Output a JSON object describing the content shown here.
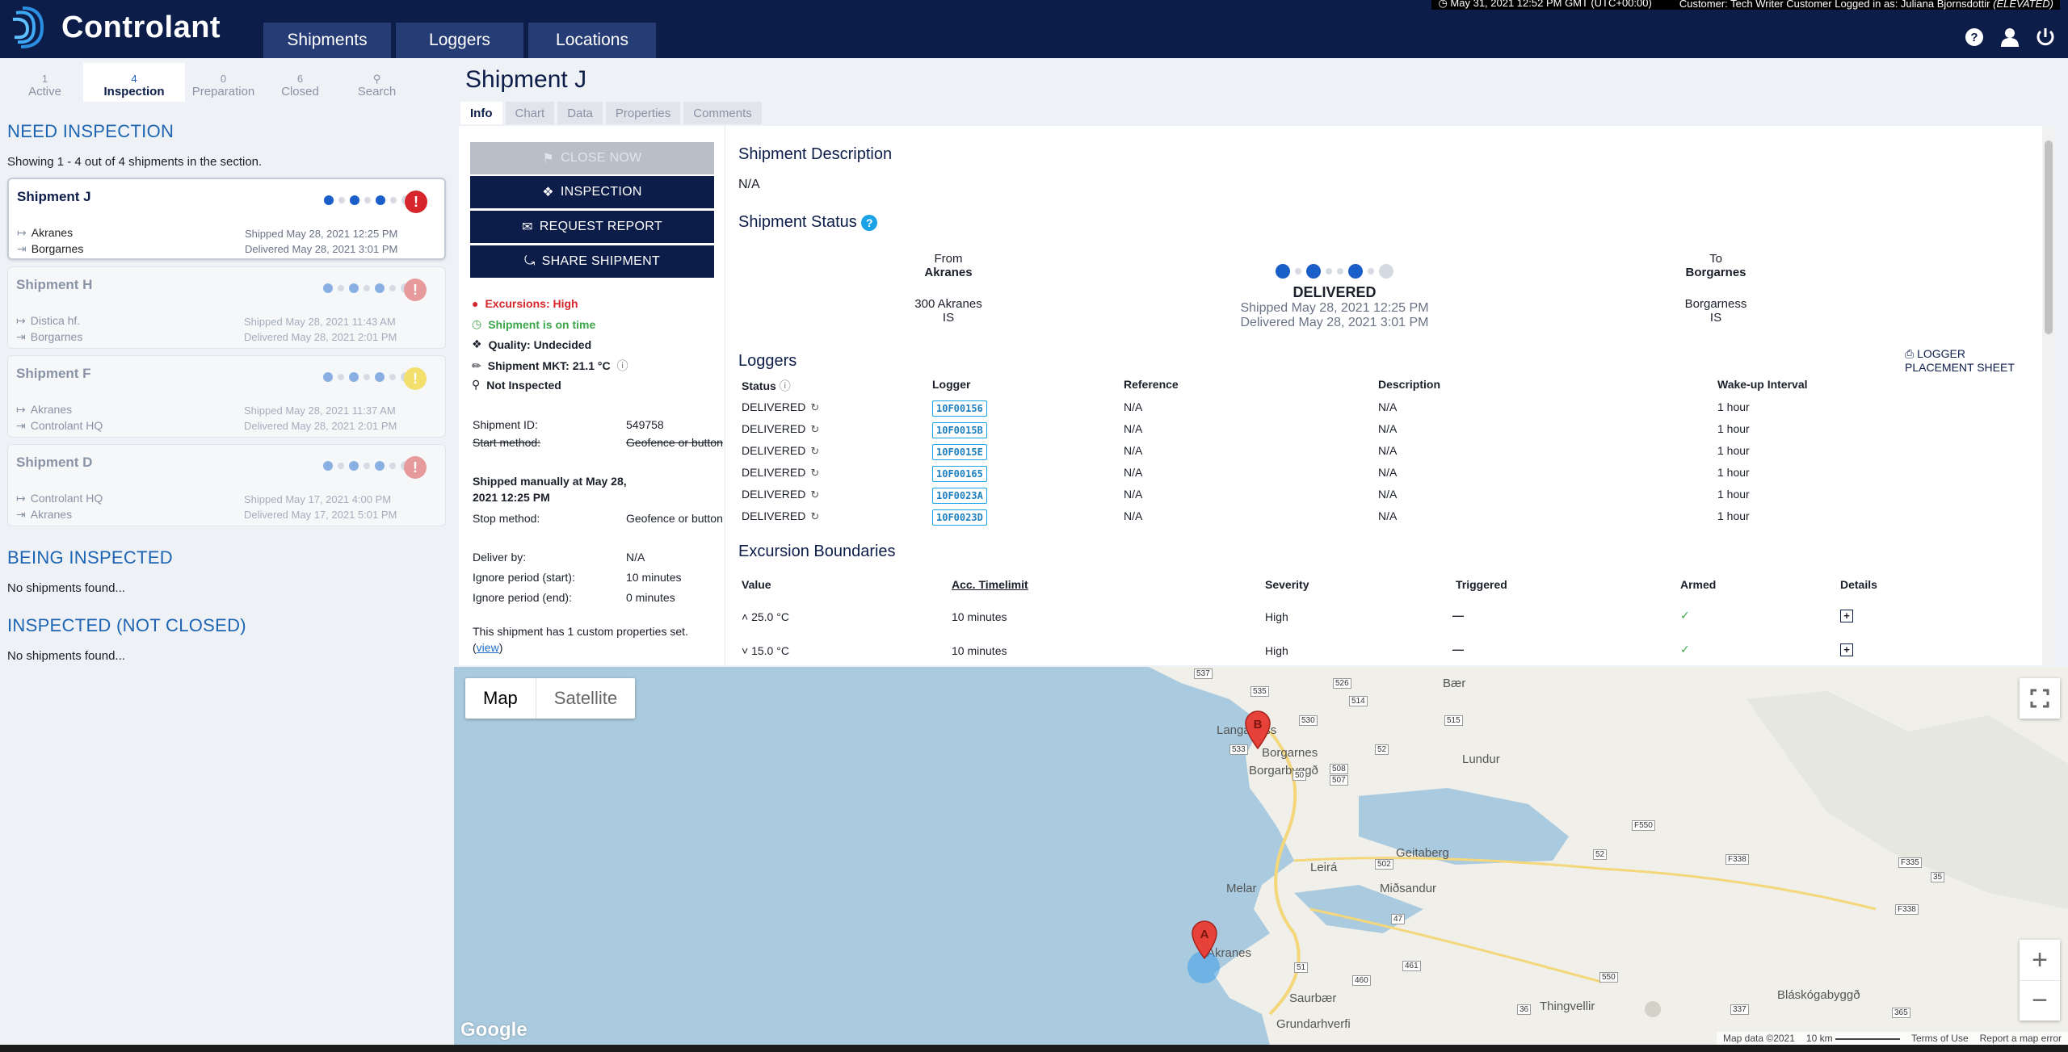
{
  "app": {
    "brand": "Controlant",
    "nav": [
      "Shipments",
      "Loggers",
      "Locations"
    ],
    "datetime": "May 31, 2021 12:52 PM GMT (UTC+00:00)",
    "customer": "Customer: Tech Writer Customer",
    "logged_in": "Logged in as: Juliana Bjornsdottir",
    "elevated": "(ELEVATED)"
  },
  "icons": [
    "help-icon",
    "user-icon",
    "power-icon"
  ],
  "subtabs": [
    {
      "count": "1",
      "label": "Active"
    },
    {
      "count": "4",
      "label": "Inspection"
    },
    {
      "count": "0",
      "label": "Preparation"
    },
    {
      "count": "6",
      "label": "Closed"
    },
    {
      "count": "",
      "label": "Search"
    }
  ],
  "left": {
    "need_title": "NEED INSPECTION",
    "showing": "Showing 1 - 4 out of 4 shipments in the section.",
    "being_title": "BEING INSPECTED",
    "being_empty": "No shipments found...",
    "inspected_title": "INSPECTED (NOT CLOSED)",
    "inspected_empty": "No shipments found..."
  },
  "shipments": [
    {
      "name": "Shipment J",
      "from": "Akranes",
      "to": "Borgarnes",
      "shipped": "Shipped May 28, 2021 12:25 PM",
      "delivered": "Delivered May 28, 2021 3:01 PM"
    },
    {
      "name": "Shipment H",
      "from": "Distica hf.",
      "to": "Borgarnes",
      "shipped": "Shipped May 28, 2021 11:43 AM",
      "delivered": "Delivered May 28, 2021 2:01 PM"
    },
    {
      "name": "Shipment F",
      "from": "Akranes",
      "to": "Controlant HQ",
      "shipped": "Shipped May 28, 2021 11:37 AM",
      "delivered": "Delivered May 28, 2021 2:01 PM"
    },
    {
      "name": "Shipment D",
      "from": "Controlant HQ",
      "to": "Akranes",
      "shipped": "Shipped May 17, 2021 4:00 PM",
      "delivered": "Delivered May 17, 2021 5:01 PM"
    }
  ],
  "main": {
    "title": "Shipment J",
    "tabs": [
      "Info",
      "Chart",
      "Data",
      "Properties",
      "Comments"
    ],
    "buttons": {
      "close": "CLOSE NOW",
      "inspection": "INSPECTION",
      "report": "REQUEST REPORT",
      "share": "SHARE SHIPMENT"
    },
    "status": {
      "excursions": "Excursions: High",
      "ontime": "Shipment is on time",
      "quality": "Quality: Undecided",
      "mkt": "Shipment MKT: 21.1 °C",
      "inspected": "Not Inspected"
    },
    "props": {
      "id_k": "Shipment ID:",
      "id_v": "549758",
      "start_k": "Start method:",
      "start_v": "Geofence or button",
      "manual": "Shipped manually at May 28, 2021 12:25 PM",
      "stop_k": "Stop method:",
      "stop_v": "Geofence or button",
      "deliver_k": "Deliver by:",
      "deliver_v": "N/A",
      "ign_start_k": "Ignore period (start):",
      "ign_start_v": "10 minutes",
      "ign_end_k": "Ignore period (end):",
      "ign_end_v": "0 minutes",
      "custom": "This shipment has 1 custom properties set.",
      "view": "view"
    },
    "description_title": "Shipment Description",
    "description": "N/A",
    "status_title": "Shipment Status",
    "route": {
      "from_label": "From",
      "from": "Akranes",
      "from_addr": "300 Akranes",
      "from_cc": "IS",
      "state": "DELIVERED",
      "shipped": "Shipped May 28, 2021 12:25 PM",
      "delivered": "Delivered May 28, 2021 3:01 PM",
      "to_label": "To",
      "to": "Borgarnes",
      "to_addr": "Borgarness",
      "to_cc": "IS"
    },
    "loggers_title": "Loggers",
    "placement_sheet": "LOGGER PLACEMENT SHEET",
    "logger_headers": [
      "Status",
      "Logger",
      "Reference",
      "Description",
      "Wake-up Interval"
    ],
    "loggers": [
      {
        "status": "DELIVERED",
        "id": "10F00156",
        "ref": "N/A",
        "desc": "N/A",
        "wake": "1 hour"
      },
      {
        "status": "DELIVERED",
        "id": "10F0015B",
        "ref": "N/A",
        "desc": "N/A",
        "wake": "1 hour"
      },
      {
        "status": "DELIVERED",
        "id": "10F0015E",
        "ref": "N/A",
        "desc": "N/A",
        "wake": "1 hour"
      },
      {
        "status": "DELIVERED",
        "id": "10F00165",
        "ref": "N/A",
        "desc": "N/A",
        "wake": "1 hour"
      },
      {
        "status": "DELIVERED",
        "id": "10F0023A",
        "ref": "N/A",
        "desc": "N/A",
        "wake": "1 hour"
      },
      {
        "status": "DELIVERED",
        "id": "10F0023D",
        "ref": "N/A",
        "desc": "N/A",
        "wake": "1 hour"
      }
    ],
    "excursion_title": "Excursion Boundaries",
    "excursion_headers": [
      "Value",
      "Acc. Timelimit",
      "Severity",
      "Triggered",
      "Armed",
      "Details"
    ],
    "excursions": [
      {
        "value": "25.0 °C",
        "limit": "10 minutes",
        "severity": "High",
        "triggered": "—"
      },
      {
        "value": "15.0 °C",
        "limit": "10 minutes",
        "severity": "High",
        "triggered": "—"
      }
    ]
  },
  "map": {
    "map_label": "Map",
    "satellite_label": "Satellite",
    "google": "Google",
    "footer": [
      "Map data ©2021",
      "10 km",
      "Terms of Use",
      "Report a map error"
    ],
    "places": [
      "Bær",
      "Langarfoss",
      "Borgarnes",
      "Borgarbyggð",
      "Lundur",
      "Geitaberg",
      "Leirá",
      "Melar",
      "Miðsandur",
      "Akranes",
      "Saurbær",
      "Grundarhverfi",
      "Thingvellir",
      "Bláskógabyggð"
    ],
    "roads": [
      "537",
      "535",
      "526",
      "514",
      "530",
      "515",
      "533",
      "52",
      "508",
      "507",
      "50",
      "F550",
      "F338",
      "F335",
      "35",
      "52",
      "502",
      "47",
      "51",
      "461",
      "460",
      "550",
      "36",
      "337",
      "365",
      "F338"
    ],
    "markers": [
      "A",
      "B"
    ]
  },
  "colors": {
    "navy": "#0d1d49",
    "nav_tab": "#263c74",
    "accent_blue": "#1d64b3",
    "alert_red": "#d6262b",
    "ok_green": "#3ca64a",
    "water": "#aacbdf"
  }
}
